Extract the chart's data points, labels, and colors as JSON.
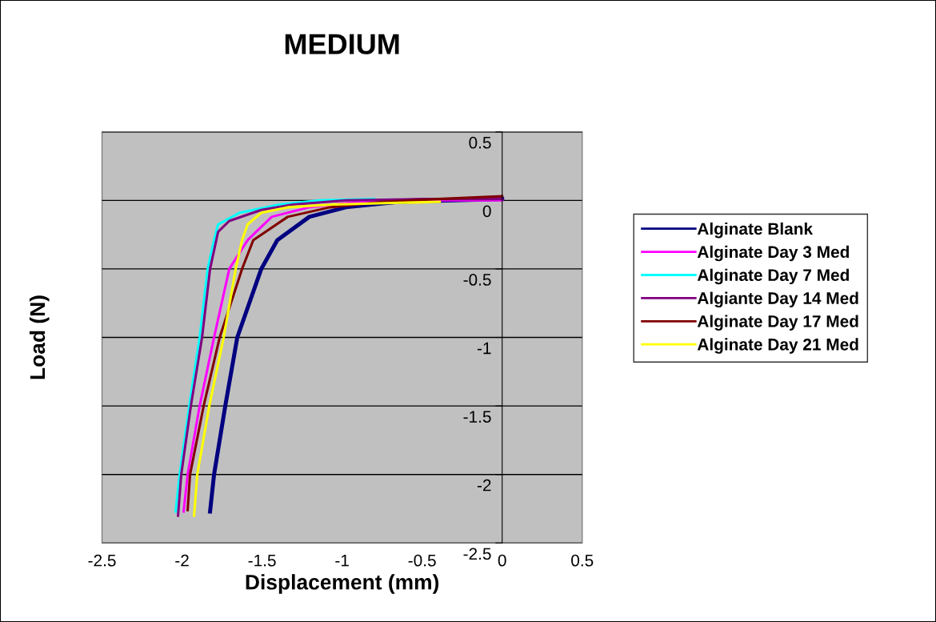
{
  "chart_data": {
    "type": "line",
    "title": "MEDIUM",
    "xlabel": "Displacement (mm)",
    "ylabel": "Load (N)",
    "xlim": [
      -2.5,
      0.5
    ],
    "xticks": [
      -2.5,
      -2,
      -1.5,
      -1,
      -0.5,
      0,
      0.5
    ],
    "ylim": [
      -2.5,
      0.5
    ],
    "yticks": [
      -2.5,
      -2,
      -1.5,
      -1,
      -0.5,
      0,
      0.5
    ],
    "grid": "y",
    "legend": "right",
    "marker": "none",
    "line_style": "solid",
    "series": [
      {
        "name": "Alginate Blank",
        "color": "#000080",
        "x": [
          -1.825,
          -1.8,
          -1.73,
          -1.655,
          -1.505,
          -1.405,
          -1.205,
          -0.975,
          -0.64,
          -0.3,
          0
        ],
        "values": [
          -2.27,
          -2.0,
          -1.5,
          -1.0,
          -0.5,
          -0.29,
          -0.12,
          -0.05,
          -0.01,
          0.0,
          0.01
        ]
      },
      {
        "name": "Alginate Day 3 Med",
        "color": "#ff00ff",
        "x": [
          -1.99,
          -1.965,
          -1.89,
          -1.8,
          -1.705,
          -1.59,
          -1.44,
          -1.205,
          -0.89,
          -0.4,
          0
        ],
        "values": [
          -2.27,
          -2.0,
          -1.5,
          -1.0,
          -0.5,
          -0.29,
          -0.12,
          -0.05,
          -0.01,
          0.0,
          0.0
        ]
      },
      {
        "name": "Alginate Day 7 Med",
        "color": "#00ffff",
        "x": [
          -2.04,
          -2.015,
          -1.955,
          -1.89,
          -1.84,
          -1.8,
          -1.775,
          -1.64,
          -1.39,
          -1.14,
          -0.8
        ],
        "values": [
          -2.27,
          -2.0,
          -1.5,
          -1.0,
          -0.5,
          -0.29,
          -0.175,
          -0.09,
          -0.03,
          0.0,
          0.01
        ]
      },
      {
        "name": "Algiante Day 14 Med",
        "color": "#800080",
        "x": [
          -2.025,
          -2.005,
          -1.945,
          -1.875,
          -1.825,
          -1.775,
          -1.705,
          -1.505,
          -1.305,
          -0.975,
          -0.5,
          0
        ],
        "values": [
          -2.3,
          -2.0,
          -1.5,
          -1.0,
          -0.5,
          -0.23,
          -0.15,
          -0.07,
          -0.03,
          0.0,
          0.01,
          0.01
        ]
      },
      {
        "name": "Alginate Day 17 Med",
        "color": "#800000",
        "x": [
          -1.965,
          -1.95,
          -1.865,
          -1.765,
          -1.625,
          -1.555,
          -1.34,
          -1.075,
          -0.74,
          -0.4,
          0
        ],
        "values": [
          -2.26,
          -2.0,
          -1.5,
          -1.0,
          -0.5,
          -0.29,
          -0.12,
          -0.05,
          -0.01,
          0.01,
          0.03
        ]
      },
      {
        "name": "Alginate Day 21 Med",
        "color": "#ffff00",
        "x": [
          -1.925,
          -1.905,
          -1.83,
          -1.74,
          -1.665,
          -1.625,
          -1.59,
          -1.505,
          -1.34,
          -1.055,
          -0.39
        ],
        "values": [
          -2.3,
          -2.0,
          -1.5,
          -1.0,
          -0.5,
          -0.29,
          -0.175,
          -0.09,
          -0.05,
          -0.03,
          -0.01
        ]
      }
    ]
  }
}
